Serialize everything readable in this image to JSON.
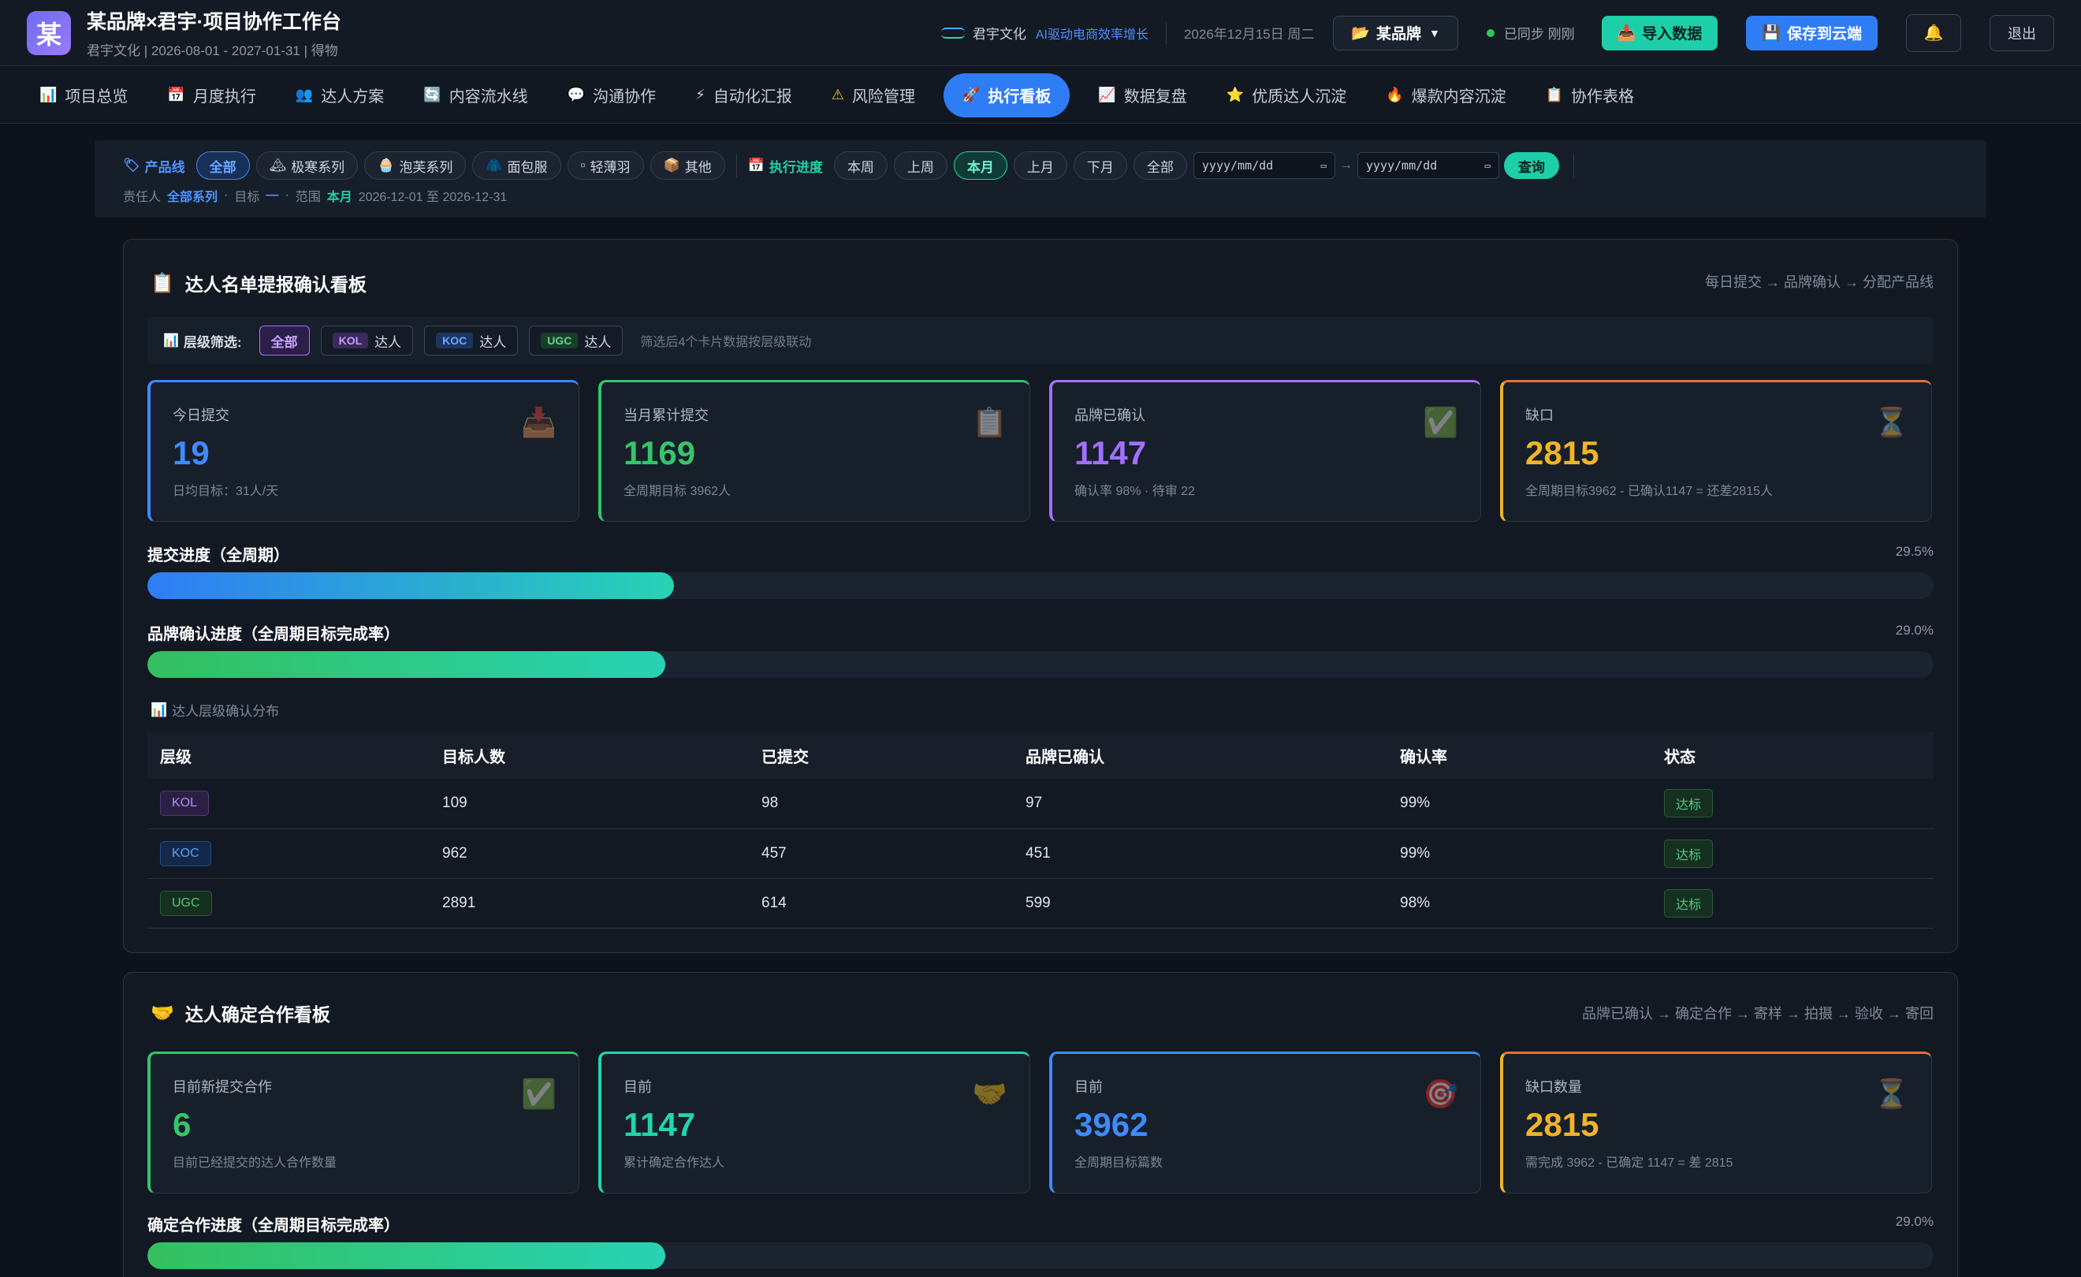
{
  "header": {
    "logo_char": "某",
    "title": "某品牌×君宇·项目协作工作台",
    "subtitle": "君宇文化 | 2026-08-01 - 2027-01-31 | 得物",
    "company": "君宇文化",
    "slogan": "AI驱动电商效率增长",
    "date": "2026年12月15日 周二",
    "brand_select": "某品牌",
    "sync_status": "已同步 刚刚",
    "import_label": "导入数据",
    "save_label": "保存到云端",
    "logout_label": "退出"
  },
  "nav": [
    {
      "icon": "📊",
      "label": "项目总览"
    },
    {
      "icon": "📅",
      "label": "月度执行"
    },
    {
      "icon": "👥",
      "label": "达人方案"
    },
    {
      "icon": "🔄",
      "label": "内容流水线"
    },
    {
      "icon": "💬",
      "label": "沟通协作"
    },
    {
      "icon": "⚡",
      "label": "自动化汇报"
    },
    {
      "icon": "⚠",
      "label": "风险管理"
    },
    {
      "icon": "🚀",
      "label": "执行看板"
    },
    {
      "icon": "📈",
      "label": "数据复盘"
    },
    {
      "icon": "⭐",
      "label": "优质达人沉淀"
    },
    {
      "icon": "🔥",
      "label": "爆款内容沉淀"
    },
    {
      "icon": "📋",
      "label": "协作表格"
    }
  ],
  "filter": {
    "product_label": "产品线",
    "products": [
      "全部",
      "极寒系列",
      "泡芙系列",
      "面包服",
      "轻薄羽",
      "其他"
    ],
    "progress_label": "执行进度",
    "periods": [
      "本周",
      "上周",
      "本月",
      "上月",
      "下月",
      "全部"
    ],
    "date_placeholder": "yyyy/mm/dd",
    "query_label": "查询",
    "info_owner_label": "责任人",
    "info_owner": "全部系列",
    "info_target_label": "目标",
    "info_target": "—",
    "info_range_label": "范围",
    "info_range": "本月",
    "info_dates": "2026-12-01 至 2026-12-31"
  },
  "panel1": {
    "title": "达人名单提报确认看板",
    "flow": "每日提交 → 品牌确认 → 分配产品线",
    "level_label": "层级筛选:",
    "level_all": "全部",
    "levels": [
      {
        "tag": "KOL",
        "label": "达人"
      },
      {
        "tag": "KOC",
        "label": "达人"
      },
      {
        "tag": "UGC",
        "label": "达人"
      }
    ],
    "level_hint": "筛选后4个卡片数据按层级联动",
    "cards": [
      {
        "label": "今日提交",
        "value": "19",
        "sub": "日均目标：31人/天",
        "color": "#3d8bff"
      },
      {
        "label": "当月累计提交",
        "value": "1169",
        "sub": "全周期目标 3962人",
        "color": "#35c56a"
      },
      {
        "label": "品牌已确认",
        "value": "1147",
        "sub": "确认率 98% · 待审 22",
        "color": "#a370ff"
      },
      {
        "label": "缺口",
        "value": "2815",
        "sub": "全周期目标3962 - 已确认1147 = 还差2815人",
        "color": "#f0b429"
      }
    ],
    "progress": [
      {
        "label": "提交进度（全周期）",
        "pct_text": "29.5%",
        "pct": 29.5
      },
      {
        "label": "品牌确认进度（全周期目标完成率）",
        "pct_text": "29.0%",
        "pct": 29.0
      }
    ],
    "table_caption": "达人层级确认分布",
    "columns": [
      "层级",
      "目标人数",
      "已提交",
      "品牌已确认",
      "确认率",
      "状态"
    ],
    "rows": [
      {
        "level": "KOL",
        "target": "109",
        "submitted": "98",
        "confirmed": "97",
        "rate": "99%",
        "status": "达标"
      },
      {
        "level": "KOC",
        "target": "962",
        "submitted": "457",
        "confirmed": "451",
        "rate": "99%",
        "status": "达标"
      },
      {
        "level": "UGC",
        "target": "2891",
        "submitted": "614",
        "confirmed": "599",
        "rate": "98%",
        "status": "达标"
      }
    ]
  },
  "panel2": {
    "title": "达人确定合作看板",
    "flow": "品牌已确认 → 确定合作 → 寄样 → 拍摄 → 验收 → 寄回",
    "cards": [
      {
        "label": "目前新提交合作",
        "value": "6",
        "sub": "目前已经提交的达人合作数量",
        "color": "#35c56a"
      },
      {
        "label": "目前",
        "value": "1147",
        "sub": "累计确定合作达人",
        "color": "#22d4ac"
      },
      {
        "label": "目前",
        "value": "3962",
        "sub": "全周期目标篇数",
        "color": "#3d8bff"
      },
      {
        "label": "缺口数量",
        "value": "2815",
        "sub": "需完成 3962 - 已确定 1147 = 差 2815",
        "color": "#f0b429"
      }
    ],
    "progress": [
      {
        "label": "确定合作进度（全周期目标完成率）",
        "pct_text": "29.0%",
        "pct": 29.0
      }
    ]
  }
}
